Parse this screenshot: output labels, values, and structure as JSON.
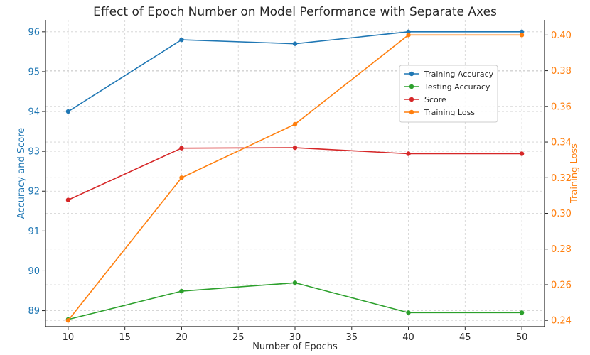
{
  "chart_data": {
    "type": "line",
    "title": "Effect of Epoch Number on Model Performance with Separate Axes",
    "xlabel": "Number of Epochs",
    "ylabel_left": "Accuracy and Score",
    "ylabel_right": "Training Loss",
    "x": [
      10,
      20,
      30,
      40,
      50
    ],
    "x_ticks": [
      10,
      15,
      20,
      25,
      30,
      35,
      40,
      45,
      50
    ],
    "xlim": [
      8,
      52
    ],
    "ylim_left": [
      88.6,
      96.3
    ],
    "ylim_right": [
      0.2365,
      0.4085
    ],
    "y_ticks_left": [
      89,
      90,
      91,
      92,
      93,
      94,
      95,
      96
    ],
    "y_ticks_right": [
      "0.24",
      "0.26",
      "0.28",
      "0.30",
      "0.32",
      "0.34",
      "0.36",
      "0.38",
      "0.40"
    ],
    "grid": true,
    "legend_position": "upper right",
    "left_axis_color": "#1f77b4",
    "right_axis_color": "#ff7f0e",
    "series": [
      {
        "name": "Training Accuracy",
        "axis": "left",
        "color": "#1f77b4",
        "values": [
          94.0,
          95.8,
          95.7,
          96.0,
          96.0
        ]
      },
      {
        "name": "Testing Accuracy",
        "axis": "left",
        "color": "#2ca02c",
        "values": [
          88.78,
          89.49,
          89.7,
          88.95,
          88.95
        ]
      },
      {
        "name": "Score",
        "axis": "left",
        "color": "#d62728",
        "values": [
          91.78,
          93.08,
          93.09,
          92.94,
          92.94
        ]
      },
      {
        "name": "Training Loss",
        "axis": "right",
        "color": "#ff7f0e",
        "values": [
          0.24,
          0.32,
          0.35,
          0.4,
          0.4
        ]
      }
    ]
  }
}
